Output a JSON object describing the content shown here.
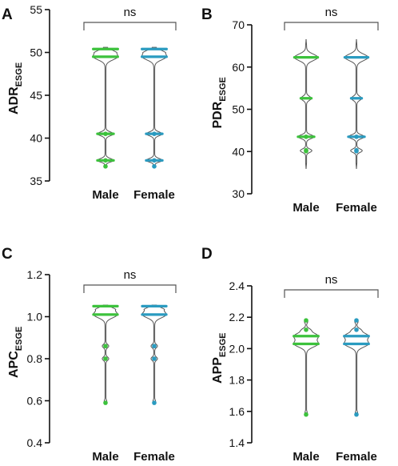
{
  "chart_data": [
    {
      "type": "violin",
      "panel": "A",
      "ylabel": {
        "main": "ADR",
        "sub": "ESGE"
      },
      "yticks": [
        35,
        40,
        45,
        50,
        55
      ],
      "ylim": [
        35,
        55
      ],
      "categories": [
        "Male",
        "Female"
      ],
      "significance": "ns",
      "series": [
        {
          "name": "Male",
          "color": "#3cc23c",
          "min": 36.7,
          "max": 50.6,
          "lines": [
            50.4,
            49.5,
            40.5,
            37.4
          ],
          "points": [
            40.5,
            37.4,
            36.7
          ]
        },
        {
          "name": "Female",
          "color": "#2a9bc0",
          "min": 36.7,
          "max": 50.6,
          "lines": [
            50.4,
            49.5,
            40.5,
            37.4
          ],
          "points": [
            40.5,
            37.4,
            36.7
          ]
        }
      ]
    },
    {
      "type": "violin",
      "panel": "B",
      "ylabel": {
        "main": "PDR",
        "sub": "ESGE"
      },
      "yticks": [
        30,
        40,
        50,
        60,
        70
      ],
      "ylim": [
        30,
        70
      ],
      "categories": [
        "Male",
        "Female"
      ],
      "significance": "ns",
      "series": [
        {
          "name": "Male",
          "color": "#3cc23c",
          "min": 36,
          "max": 66.5,
          "lines": [
            62.3,
            52.6,
            43.5
          ],
          "points": [
            43.5,
            40.3,
            40.1
          ]
        },
        {
          "name": "Female",
          "color": "#2a9bc0",
          "min": 36,
          "max": 66.5,
          "lines": [
            62.3,
            52.6,
            43.5
          ],
          "points": [
            43.5,
            40.3,
            40.1
          ]
        }
      ]
    },
    {
      "type": "violin",
      "panel": "C",
      "ylabel": {
        "main": "APC",
        "sub": "ESGE"
      },
      "yticks": [
        "0.4",
        "0.6",
        "0.8",
        "1.0",
        "1.2"
      ],
      "ylim": [
        0.4,
        1.2
      ],
      "categories": [
        "Male",
        "Female"
      ],
      "significance": "ns",
      "series": [
        {
          "name": "Male",
          "color": "#3cc23c",
          "min": 0.585,
          "max": 1.055,
          "lines": [
            1.05,
            1.01
          ],
          "points": [
            0.86,
            0.8,
            0.59
          ]
        },
        {
          "name": "Female",
          "color": "#2a9bc0",
          "min": 0.585,
          "max": 1.055,
          "lines": [
            1.05,
            1.01
          ],
          "points": [
            0.86,
            0.8,
            0.59
          ]
        }
      ]
    },
    {
      "type": "violin",
      "panel": "D",
      "ylabel": {
        "main": "APP",
        "sub": "ESGE"
      },
      "yticks": [
        "1.4",
        "1.6",
        "1.8",
        "2.0",
        "2.2",
        "2.4"
      ],
      "ylim": [
        1.4,
        2.4
      ],
      "categories": [
        "Male",
        "Female"
      ],
      "significance": "ns",
      "series": [
        {
          "name": "Male",
          "color": "#3cc23c",
          "min": 1.575,
          "max": 2.19,
          "lines": [
            2.08,
            2.03
          ],
          "points": [
            2.18,
            2.12,
            1.58
          ]
        },
        {
          "name": "Female",
          "color": "#2a9bc0",
          "min": 1.575,
          "max": 2.19,
          "lines": [
            2.08,
            2.03
          ],
          "points": [
            2.18,
            2.12,
            1.58
          ]
        }
      ]
    }
  ]
}
